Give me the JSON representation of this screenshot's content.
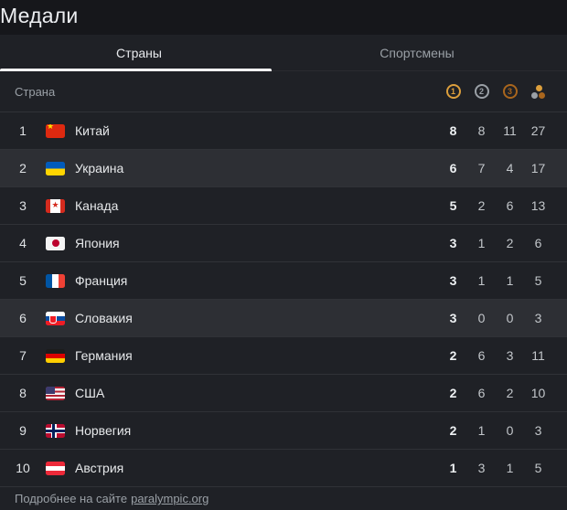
{
  "page": {
    "title": "Медали"
  },
  "tabs": [
    {
      "label": "Страны",
      "active": true
    },
    {
      "label": "Спортсмены",
      "active": false
    }
  ],
  "table": {
    "country_header": "Страна",
    "medal_header": {
      "gold": "1",
      "silver": "2",
      "bronze": "3",
      "total_icon": "medals-total-dots"
    },
    "rows": [
      {
        "rank": "1",
        "country": "Китай",
        "flag": "cn",
        "gold": "8",
        "silver": "8",
        "bronze": "11",
        "total": "27",
        "highlighted": false
      },
      {
        "rank": "2",
        "country": "Украина",
        "flag": "ua",
        "gold": "6",
        "silver": "7",
        "bronze": "4",
        "total": "17",
        "highlighted": true
      },
      {
        "rank": "3",
        "country": "Канада",
        "flag": "ca",
        "gold": "5",
        "silver": "2",
        "bronze": "6",
        "total": "13",
        "highlighted": false
      },
      {
        "rank": "4",
        "country": "Япония",
        "flag": "jp",
        "gold": "3",
        "silver": "1",
        "bronze": "2",
        "total": "6",
        "highlighted": false
      },
      {
        "rank": "5",
        "country": "Франция",
        "flag": "fr",
        "gold": "3",
        "silver": "1",
        "bronze": "1",
        "total": "5",
        "highlighted": false
      },
      {
        "rank": "6",
        "country": "Словакия",
        "flag": "sk",
        "gold": "3",
        "silver": "0",
        "bronze": "0",
        "total": "3",
        "highlighted": true
      },
      {
        "rank": "7",
        "country": "Германия",
        "flag": "de",
        "gold": "2",
        "silver": "6",
        "bronze": "3",
        "total": "11",
        "highlighted": false
      },
      {
        "rank": "8",
        "country": "США",
        "flag": "us",
        "gold": "2",
        "silver": "6",
        "bronze": "2",
        "total": "10",
        "highlighted": false
      },
      {
        "rank": "9",
        "country": "Норвегия",
        "flag": "no",
        "gold": "2",
        "silver": "1",
        "bronze": "0",
        "total": "3",
        "highlighted": false
      },
      {
        "rank": "10",
        "country": "Австрия",
        "flag": "at",
        "gold": "1",
        "silver": "3",
        "bronze": "1",
        "total": "5",
        "highlighted": false
      }
    ]
  },
  "footer": {
    "text": "Подробнее на сайте",
    "link": "paralympic.org"
  },
  "colors": {
    "gold": "#dc9f3c",
    "silver": "#9aa0a6",
    "bronze": "#a9661d",
    "tab_indicator": "#ffffff",
    "highlight_row": "#2d2f34"
  }
}
